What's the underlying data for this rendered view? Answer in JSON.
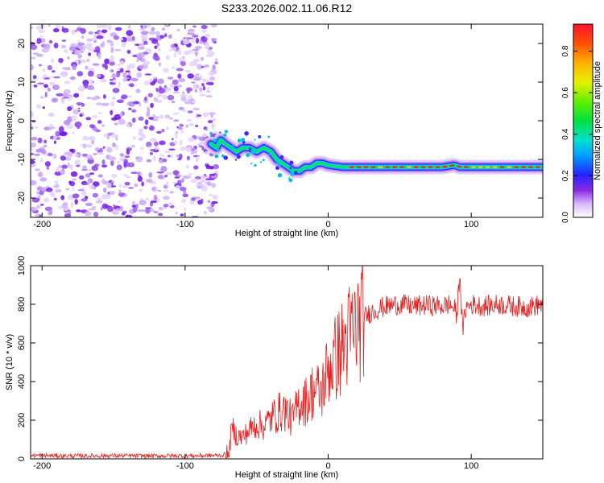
{
  "title": "S233.2026.002.11.06.R12",
  "colors": {
    "snr_line": "#e82020",
    "spectrum_noise": "#7a22ee",
    "axis": "#000000",
    "background": "#ffffff"
  },
  "chart_data": [
    {
      "type": "heatmap",
      "name": "spectrogram",
      "xlabel": "Height of straight line (km)",
      "ylabel": "Frequency (Hz)",
      "xlim": [
        -208,
        150
      ],
      "ylim": [
        -25,
        25
      ],
      "xticks": [
        -200,
        -100,
        0,
        100
      ],
      "xtick_labels": [
        "-200",
        "-100",
        "0",
        "100"
      ],
      "yticks": [
        20,
        10,
        0,
        -10,
        -20
      ],
      "ytick_labels": [
        "20",
        "10",
        "0",
        "-10",
        "-20"
      ],
      "noise_region_x": [
        -208,
        -80
      ],
      "ridge": {
        "x": [
          -82,
          -78,
          -75,
          -72,
          -68,
          -64,
          -60,
          -55,
          -50,
          -45,
          -40,
          -36,
          -32,
          -28,
          -24,
          -20,
          -16,
          -12,
          -8,
          -4,
          0,
          10,
          20,
          40,
          60,
          80,
          88,
          92,
          100,
          115,
          130,
          150
        ],
        "freq": [
          -6,
          -7,
          -5,
          -6,
          -7,
          -8,
          -7,
          -7,
          -8,
          -7,
          -8,
          -10,
          -11,
          -12,
          -13,
          -13,
          -12,
          -12,
          -11,
          -11,
          -11.5,
          -12,
          -12,
          -12,
          -12,
          -12,
          -11.5,
          -12,
          -12,
          -12,
          -12,
          -12
        ]
      },
      "colorbar": {
        "label": "Normalized spectral amplitude",
        "range": [
          0,
          0.93
        ],
        "ticks": [
          0.0,
          0.2,
          0.4,
          0.6,
          0.8
        ],
        "tick_labels": [
          "0.0",
          "0.2",
          "0.4",
          "0.6",
          "0.8"
        ]
      }
    },
    {
      "type": "line",
      "name": "snr",
      "xlabel": "Height of straight line (km)",
      "ylabel": "SNR (10 * v/v)",
      "xlim": [
        -208,
        150
      ],
      "ylim": [
        0,
        1000
      ],
      "xticks": [
        -200,
        -100,
        0,
        100
      ],
      "xtick_labels": [
        "-200",
        "-100",
        "0",
        "100"
      ],
      "yticks": [
        0,
        200,
        400,
        600,
        800,
        1000
      ],
      "ytick_labels": [
        "0",
        "200",
        "400",
        "600",
        "800",
        "1000"
      ],
      "series": [
        {
          "name": "SNR",
          "x": [
            -208,
            -180,
            -150,
            -120,
            -90,
            -75,
            -70,
            -67,
            -64,
            -60,
            -55,
            -50,
            -45,
            -40,
            -35,
            -30,
            -25,
            -20,
            -15,
            -10,
            -5,
            0,
            5,
            10,
            15,
            20,
            25,
            30,
            40,
            50,
            60,
            70,
            80,
            85,
            88,
            90,
            92,
            94,
            96,
            100,
            110,
            120,
            130,
            140,
            150
          ],
          "y": [
            18,
            15,
            16,
            15,
            16,
            18,
            25,
            160,
            120,
            110,
            150,
            180,
            170,
            210,
            240,
            250,
            200,
            300,
            300,
            360,
            340,
            470,
            520,
            580,
            640,
            690,
            730,
            760,
            790,
            800,
            790,
            795,
            790,
            800,
            780,
            740,
            970,
            650,
            780,
            800,
            790,
            800,
            790,
            785,
            800
          ]
        }
      ]
    }
  ]
}
